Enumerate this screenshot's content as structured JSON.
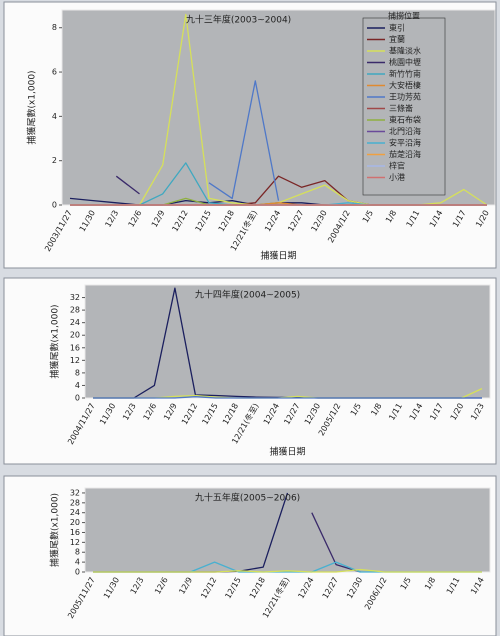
{
  "chart_data": [
    {
      "type": "line",
      "title": "九十三年度(2003~2004)",
      "ylabel": "捕獲尾數(x1,000)",
      "xlabel": "捕獲日期",
      "categories": [
        "2003/11/27",
        "11/30",
        "12/3",
        "12/6",
        "12/9",
        "12/12",
        "12/15",
        "12/18",
        "12/21(冬至)",
        "12/24",
        "12/27",
        "12/30",
        "2004/1/2",
        "1/5",
        "1/8",
        "1/11",
        "1/14",
        "1/17",
        "1/20"
      ],
      "ylim": [
        0,
        8.8
      ],
      "yticks": [
        0,
        2,
        4,
        6,
        8
      ],
      "legend_title": "捕撈位置",
      "legend": "upper right",
      "series": [
        {
          "name": "東引",
          "color": "#1b1f5e",
          "values": [
            0.3,
            0.2,
            0.1,
            0,
            0,
            0.2,
            0.1,
            0.2,
            0,
            0.1,
            0.1,
            0,
            0,
            0,
            0,
            0,
            0,
            0,
            0
          ]
        },
        {
          "name": "宜蘭",
          "color": "#7a2626",
          "values": [
            0,
            0,
            0,
            0,
            0,
            0,
            0,
            0,
            0.1,
            1.3,
            0.8,
            1.1,
            0.2,
            0,
            0,
            0,
            0,
            0,
            0
          ]
        },
        {
          "name": "基隆淡水",
          "color": "#d6e05a",
          "values": [
            0,
            0,
            0,
            0,
            1.8,
            8.6,
            0.3,
            0.1,
            0,
            0.1,
            0.5,
            0.9,
            0.2,
            0,
            0,
            0,
            0.1,
            0.7,
            0
          ]
        },
        {
          "name": "桃園中壢",
          "color": "#3a2a6a",
          "values": [
            null,
            null,
            1.3,
            0.5,
            null,
            null,
            null,
            null,
            null,
            null,
            null,
            null,
            null,
            null,
            null,
            null,
            null,
            null,
            null
          ]
        },
        {
          "name": "新竹竹南",
          "color": "#3fa8c0",
          "values": [
            0,
            0,
            0,
            0,
            0.5,
            1.9,
            0.1,
            0,
            0,
            0,
            0,
            0,
            0,
            0,
            0,
            0,
            0,
            0,
            0
          ]
        },
        {
          "name": "大安梧棲",
          "color": "#e08a30",
          "values": [
            0,
            0,
            0,
            0,
            0,
            0,
            0,
            0,
            0,
            0.1,
            0,
            0,
            0,
            0,
            0,
            0,
            0,
            0,
            0
          ]
        },
        {
          "name": "王功芳苑",
          "color": "#4f78c8",
          "values": [
            null,
            null,
            null,
            null,
            null,
            null,
            1.0,
            0.3,
            5.6,
            0.2,
            null,
            null,
            null,
            null,
            null,
            null,
            null,
            null,
            null
          ]
        },
        {
          "name": "三條崙",
          "color": "#a04848",
          "values": [
            0,
            0,
            0,
            0,
            0,
            0,
            0,
            0,
            0,
            0,
            0,
            0,
            0,
            0,
            0,
            0,
            0,
            0,
            0
          ]
        },
        {
          "name": "東石布袋",
          "color": "#8fb040",
          "values": [
            0,
            0,
            0,
            0,
            0,
            0.3,
            0,
            0,
            0,
            0,
            0,
            0,
            0,
            0,
            0,
            0,
            0,
            0,
            0
          ]
        },
        {
          "name": "北門沿海",
          "color": "#6a4a9a",
          "values": [
            0,
            0,
            0,
            0,
            0,
            0,
            0,
            0,
            0,
            0,
            0,
            0,
            0,
            0,
            0,
            0,
            0,
            0,
            0
          ]
        },
        {
          "name": "安平沿海",
          "color": "#48b0d0",
          "values": [
            0,
            0,
            0,
            0,
            0,
            0,
            0,
            0,
            0,
            0,
            0,
            0,
            0.1,
            0,
            0,
            0,
            0,
            0,
            0
          ]
        },
        {
          "name": "茄萣沿海",
          "color": "#f0a040",
          "values": [
            0,
            0,
            0,
            0,
            0,
            0,
            0,
            0,
            0,
            0,
            0,
            0,
            0,
            0,
            0,
            0,
            0,
            0,
            0
          ]
        },
        {
          "name": "梓官",
          "color": "#a8b8e8",
          "values": [
            0,
            0,
            0,
            0,
            0,
            0,
            0,
            0,
            0,
            0,
            0,
            0,
            0,
            0,
            0,
            0,
            0,
            0,
            0
          ]
        },
        {
          "name": "小港",
          "color": "#d07070",
          "values": [
            0,
            0,
            0,
            0,
            0,
            0,
            0,
            0,
            0,
            0,
            0,
            0,
            0,
            0,
            0,
            0,
            0,
            0,
            0
          ]
        }
      ]
    },
    {
      "type": "line",
      "title": "九十四年度(2004~2005)",
      "ylabel": "捕獲尾數(x1,000)",
      "xlabel": "捕獲日期",
      "categories": [
        "2004/11/27",
        "11/30",
        "12/3",
        "12/6",
        "12/9",
        "12/12",
        "12/15",
        "12/18",
        "12/21(冬至)",
        "12/24",
        "12/27",
        "12/30",
        "2005/1/2",
        "1/5",
        "1/8",
        "1/11",
        "1/14",
        "1/17",
        "1/20",
        "1/23"
      ],
      "ylim": [
        0,
        36
      ],
      "yticks": [
        0,
        4,
        8,
        12,
        16,
        20,
        24,
        28,
        32
      ],
      "series": [
        {
          "color": "#1b1f5e",
          "values": [
            0,
            0,
            0,
            4,
            35,
            1,
            0.8,
            0.5,
            0.3,
            0.2,
            0.2,
            0,
            0,
            0,
            0,
            0,
            0,
            0,
            0,
            0
          ]
        },
        {
          "color": "#d6e05a",
          "values": [
            0,
            0,
            0,
            0,
            0.5,
            0.8,
            0.3,
            0,
            0,
            0,
            0.5,
            0,
            0,
            0,
            0,
            0,
            0,
            0,
            0,
            3
          ]
        },
        {
          "color": "#4f78c8",
          "values": [
            0,
            0,
            0,
            0,
            0,
            0.4,
            0,
            0,
            0,
            0,
            0,
            0,
            0,
            0,
            0,
            0,
            0,
            0,
            0,
            0
          ]
        }
      ]
    },
    {
      "type": "line",
      "title": "九十五年度(2005~2006)",
      "ylabel": "捕獲尾數(x1,000)",
      "categories": [
        "2005/11/27",
        "11/30",
        "12/3",
        "12/6",
        "12/9",
        "12/12",
        "12/15",
        "12/18",
        "12/21(冬至)",
        "12/24",
        "12/27",
        "12/30",
        "2006/1/2",
        "1/5",
        "1/8",
        "1/11",
        "1/14"
      ],
      "ylim": [
        0,
        34
      ],
      "yticks": [
        0,
        4,
        8,
        12,
        16,
        20,
        24,
        28,
        32
      ],
      "series": [
        {
          "color": "#1b1f5e",
          "values": [
            0,
            0,
            0,
            0,
            0,
            0,
            0.3,
            2,
            32,
            null,
            null,
            null,
            null,
            null,
            null,
            null,
            null
          ]
        },
        {
          "color": "#3a2a6a",
          "values": [
            null,
            null,
            null,
            null,
            null,
            null,
            null,
            null,
            null,
            24,
            3,
            0,
            null,
            null,
            null,
            null,
            null
          ]
        },
        {
          "color": "#48b0d0",
          "values": [
            0,
            0,
            0,
            0,
            0,
            4,
            0,
            0,
            0,
            0,
            4,
            0,
            0,
            0,
            0,
            0,
            0
          ]
        },
        {
          "color": "#d6e05a",
          "values": [
            0,
            0,
            0,
            0,
            0,
            0,
            0.5,
            0,
            0.5,
            0,
            0,
            1,
            0,
            0,
            0,
            0,
            0
          ]
        }
      ]
    }
  ]
}
